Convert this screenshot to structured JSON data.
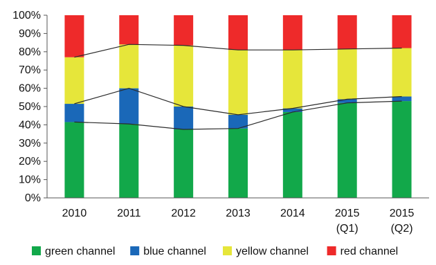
{
  "chart_data": {
    "type": "bar",
    "stacked": true,
    "categories": [
      [
        "2010"
      ],
      [
        "2011"
      ],
      [
        "2012"
      ],
      [
        "2013"
      ],
      [
        "2014"
      ],
      [
        "2015",
        "(Q1)"
      ],
      [
        "2015",
        "(Q2)"
      ]
    ],
    "ylim": [
      0,
      100
    ],
    "yticks": [
      "0%",
      "10%",
      "20%",
      "30%",
      "40%",
      "50%",
      "60%",
      "70%",
      "80%",
      "90%",
      "100%"
    ],
    "grid": false,
    "legend_position": "bottom",
    "connector_lines": true,
    "series": [
      {
        "name": "green channel",
        "color": "#12a84a",
        "values": [
          41.5,
          40.5,
          37.5,
          38,
          47,
          52,
          53
        ]
      },
      {
        "name": "blue channel",
        "color": "#1a68b8",
        "values": [
          10,
          19.5,
          12.5,
          7.5,
          2,
          2,
          2.5
        ]
      },
      {
        "name": "yellow channel",
        "color": "#e6e63a",
        "values": [
          25.5,
          24,
          33.5,
          35.5,
          32,
          27.5,
          26.5
        ]
      },
      {
        "name": "red channel",
        "color": "#ee2a2a",
        "values": [
          23,
          16,
          16.5,
          19,
          19,
          18.5,
          18
        ]
      }
    ]
  }
}
